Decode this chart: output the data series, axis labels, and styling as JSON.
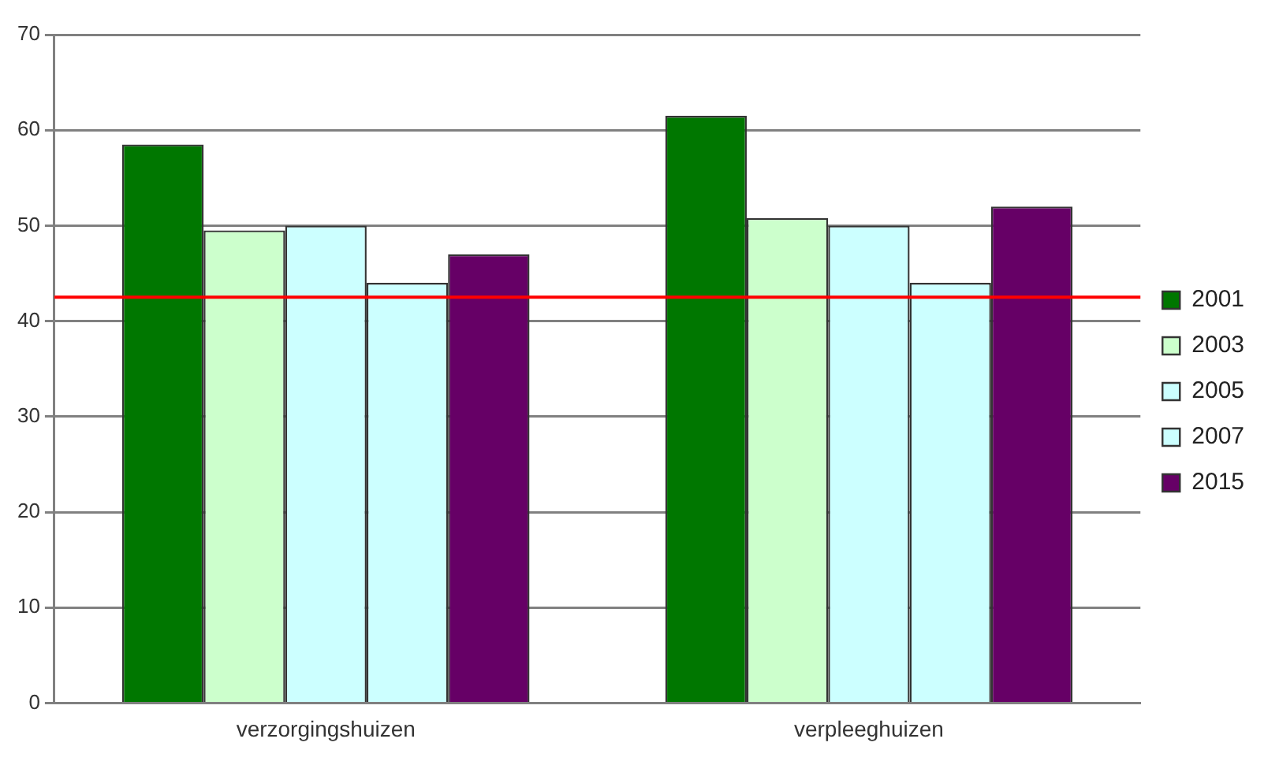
{
  "chart_data": {
    "type": "bar",
    "categories": [
      "verzorgingshuizen",
      "verpleeghuizen"
    ],
    "series": [
      {
        "name": "2001",
        "color": "#007700",
        "values": [
          58.5,
          61.5
        ]
      },
      {
        "name": "2003",
        "color": "#ccffcc",
        "values": [
          49.5,
          50.8
        ]
      },
      {
        "name": "2005",
        "color": "#ccffff",
        "values": [
          50,
          50
        ]
      },
      {
        "name": "2007",
        "color": "#ccffff",
        "values": [
          44,
          44
        ]
      },
      {
        "name": "2015",
        "color": "#660066",
        "values": [
          47,
          52
        ]
      }
    ],
    "ylim": [
      0,
      70
    ],
    "yticks": [
      0,
      10,
      20,
      30,
      40,
      50,
      60,
      70
    ],
    "grid": "y",
    "legend": "right",
    "ref_lines": [
      {
        "axis": "y",
        "value": 42.5,
        "color": "#ff0000"
      }
    ]
  }
}
